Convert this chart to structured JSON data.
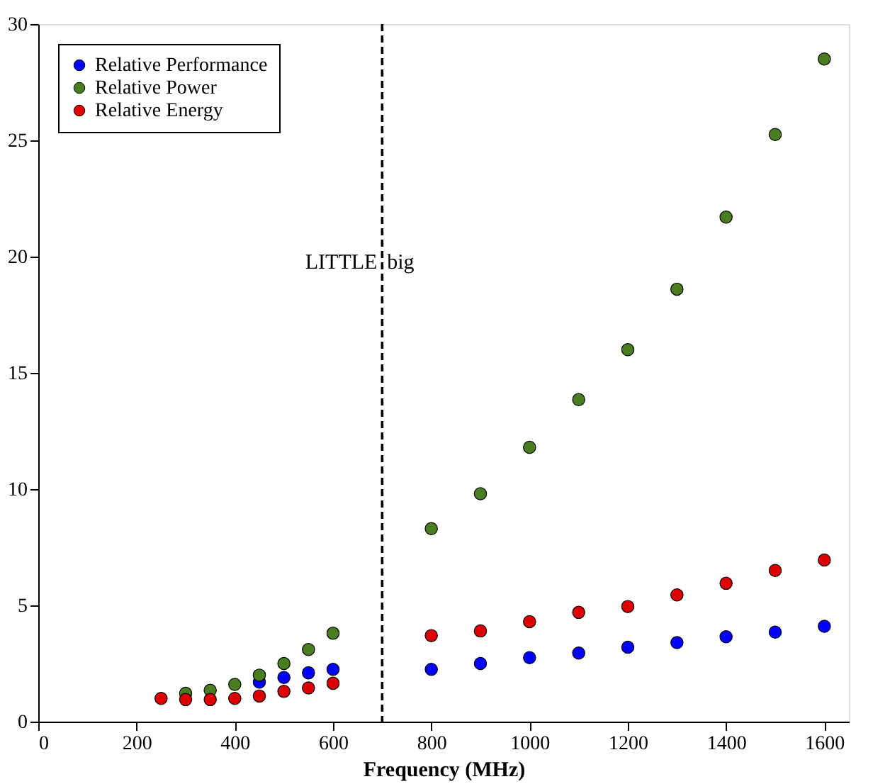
{
  "chart_data": {
    "type": "scatter",
    "xlabel": "Frequency (MHz)",
    "x": [
      250,
      300,
      350,
      400,
      450,
      500,
      550,
      600,
      800,
      900,
      1000,
      1100,
      1200,
      1300,
      1400,
      1500,
      1600
    ],
    "series": [
      {
        "name": "Relative Performance",
        "color": "#0000ff",
        "values": [
          null,
          null,
          null,
          null,
          1.7,
          1.9,
          2.1,
          2.25,
          2.25,
          2.5,
          2.75,
          2.95,
          3.2,
          3.4,
          3.65,
          3.85,
          4.1
        ]
      },
      {
        "name": "Relative Power",
        "color": "#4a7d1f",
        "values": [
          null,
          1.22,
          1.35,
          1.6,
          2.0,
          2.5,
          3.1,
          3.8,
          8.3,
          9.8,
          11.8,
          13.85,
          16.0,
          18.6,
          21.7,
          25.25,
          28.5
        ]
      },
      {
        "name": "Relative Energy",
        "color": "#dd0000",
        "values": [
          1.0,
          0.95,
          0.95,
          1.0,
          1.1,
          1.3,
          1.45,
          1.65,
          3.7,
          3.9,
          4.3,
          4.7,
          4.95,
          5.45,
          5.95,
          6.5,
          6.95
        ]
      }
    ],
    "xlim": [
      0,
      1650
    ],
    "xticks": [
      0,
      200,
      400,
      600,
      800,
      1000,
      1200,
      1400,
      1600
    ],
    "ylim": [
      0,
      30
    ],
    "yticks": [
      0,
      5,
      10,
      15,
      20,
      25,
      30
    ],
    "ref_lines": [
      {
        "axis": "x",
        "value": 700,
        "color": "#000000",
        "line_style": "dashed"
      }
    ],
    "annotations": [
      {
        "text": "LITTLE",
        "x": 690,
        "y": 19.8
      },
      {
        "text": "big",
        "x": 710,
        "y": 19.8
      }
    ],
    "legend": "top left",
    "grid": false,
    "marker": "circle"
  }
}
